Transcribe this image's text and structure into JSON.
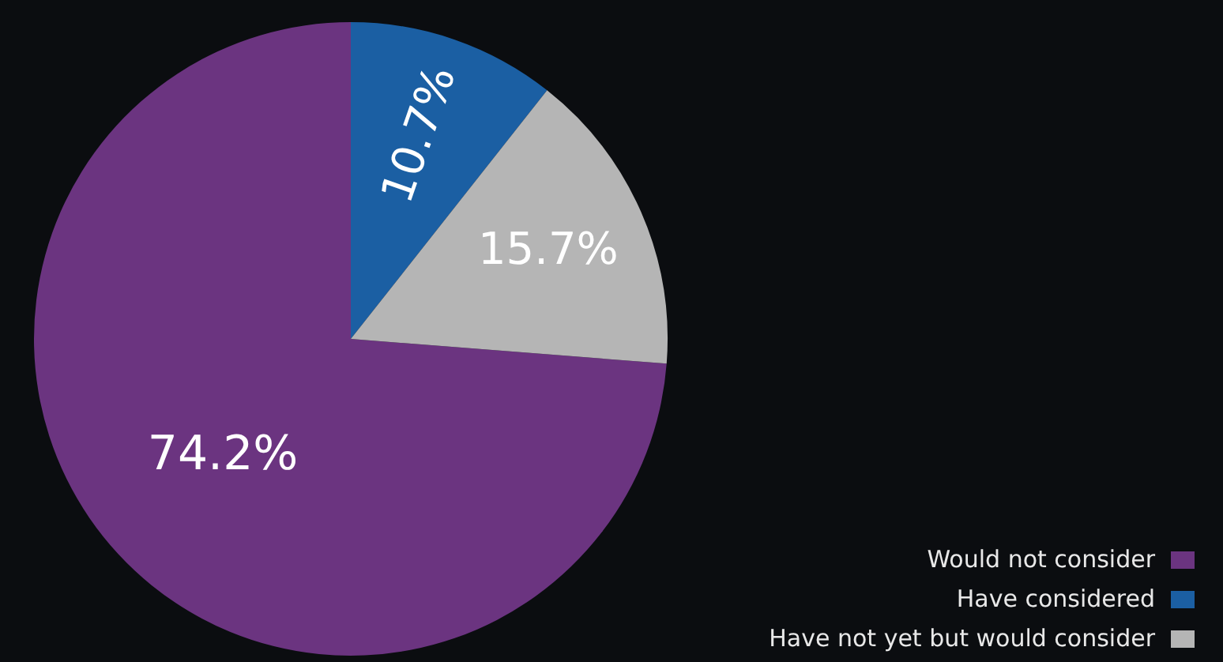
{
  "chart_data": {
    "type": "pie",
    "categories": [
      "Would not consider",
      "Have considered",
      "Have not yet but would consider"
    ],
    "values": [
      74.2,
      10.7,
      15.7
    ],
    "colors": [
      "#6b3480",
      "#1b5fa3",
      "#b5b5b5"
    ],
    "value_labels": [
      "74.2%",
      "10.7%",
      "15.7%"
    ],
    "legend": "bottom right"
  }
}
